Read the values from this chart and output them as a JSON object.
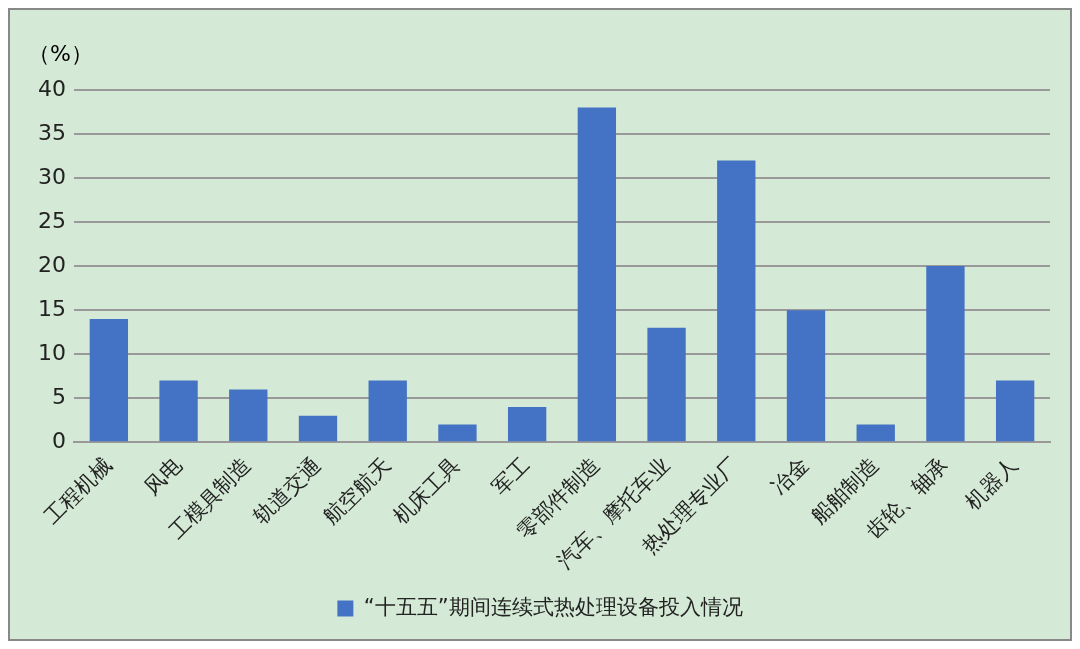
{
  "chart_data": {
    "type": "bar",
    "ylabel": "（%）",
    "categories": [
      "工程机械",
      "风电",
      "工模具制造",
      "轨道交通",
      "航空航天",
      "机床工具",
      "军工",
      "零部件制造",
      "汽车、摩托车业",
      "热处理专业厂",
      "冶金",
      "船舶制造",
      "齿轮、轴承",
      "机器人"
    ],
    "series": [
      {
        "name": "“十五五”期间连续式热处理设备投入情况",
        "color": "#4472c4",
        "values": [
          14,
          7,
          6,
          3,
          7,
          2,
          4,
          38,
          13,
          32,
          15,
          2,
          20,
          7
        ]
      }
    ],
    "ylim": [
      0,
      40
    ],
    "yticks": [
      0,
      5,
      10,
      15,
      20,
      25,
      30,
      35,
      40
    ],
    "grid": "y",
    "legend": "bottom"
  }
}
